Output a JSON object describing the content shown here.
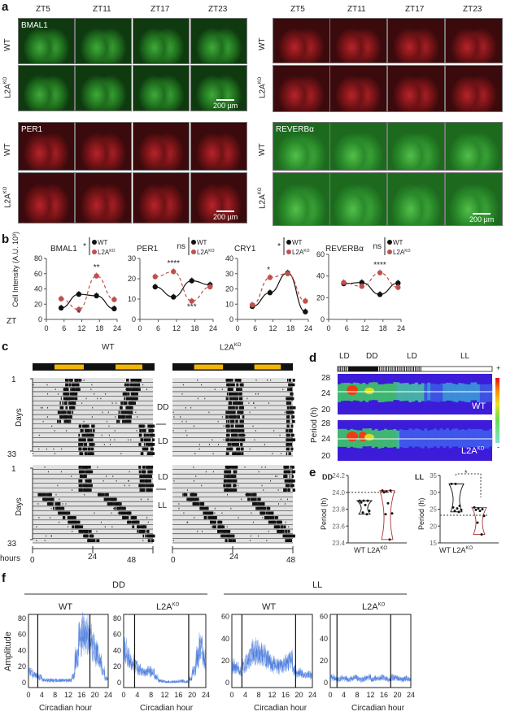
{
  "panel_labels": {
    "a": "a",
    "b": "b",
    "c": "c",
    "d": "d",
    "e": "e",
    "f": "f"
  },
  "genotypes": {
    "wt": "WT",
    "ko": "L2A",
    "ko_sup": "KO"
  },
  "panel_a": {
    "timepoints": [
      "ZT5",
      "ZT11",
      "ZT17",
      "ZT23"
    ],
    "markers": {
      "bmal1": "BMAL1",
      "per1": "PER1",
      "reverb": "REVERBα"
    },
    "scale_bar": "200 µm"
  },
  "panel_c": {
    "days_label": "Days",
    "day_start": "1",
    "day_end": "33",
    "hours_label": "hours",
    "hour_ticks": [
      "0",
      "24",
      "48"
    ],
    "conditions": {
      "dd": "DD",
      "ld": "LD",
      "ll": "LL"
    }
  },
  "panel_d": {
    "segments": [
      "LD",
      "DD",
      "LD",
      "LL"
    ],
    "y_label": "Period (h)",
    "y_ticks": [
      "28",
      "24",
      "20"
    ],
    "scale_plus": "+",
    "scale_minus": "-"
  },
  "panel_e": {
    "dd": {
      "title": "DD",
      "y_label": "Period (h)",
      "y_ticks": [
        "24.2",
        "24.0",
        "23.8",
        "23.6",
        "23.4"
      ],
      "ylim": [
        23.4,
        24.2
      ],
      "ref": 24.0,
      "wt": [
        23.9,
        23.9,
        23.9,
        23.88,
        23.85,
        23.78,
        23.76,
        23.74
      ],
      "ko": [
        24.02,
        24.01,
        24.02,
        24.0,
        23.87,
        23.75,
        23.74,
        23.44
      ]
    },
    "ll": {
      "title": "LL",
      "y_label": "Period (h)",
      "y_ticks": [
        "35",
        "30",
        "25",
        "20",
        "15"
      ],
      "ylim": [
        15,
        35
      ],
      "ref": 23.2,
      "sig": "*",
      "wt": [
        32.5,
        32.5,
        26,
        25.5,
        25.2,
        24.8,
        24.5,
        24.2
      ],
      "ko": [
        25.5,
        25.2,
        25,
        24.8,
        24.5,
        23,
        21,
        17.5
      ]
    }
  },
  "panel_f": {
    "dd_label": "DD",
    "ll_label": "LL",
    "x_label": "Circadian hour",
    "y_label": "Amplitude"
  },
  "chart_data": [
    {
      "type": "line",
      "title": "BMAL1",
      "sig": "*",
      "x": [
        5,
        11,
        17,
        23
      ],
      "xlim": [
        0,
        24
      ],
      "xticks": [
        0,
        6,
        12,
        18,
        24
      ],
      "ylim": [
        0,
        80
      ],
      "yticks": [
        0,
        20,
        40,
        60,
        80
      ],
      "ylabel": "Cell Intensity (A.U. 10³)",
      "xlabel": "ZT",
      "series": [
        {
          "name": "WT",
          "values": [
            15,
            33,
            31,
            14
          ],
          "color": "#111111"
        },
        {
          "name": "L2AKO",
          "values": [
            27,
            13,
            57,
            26
          ],
          "color": "#c0504d"
        }
      ],
      "annotations": [
        {
          "x": 11,
          "y": 5,
          "text": "*"
        },
        {
          "x": 17,
          "y": 65,
          "text": "**"
        }
      ]
    },
    {
      "type": "line",
      "title": "PER1",
      "sig": "ns",
      "x": [
        5,
        11,
        17,
        23
      ],
      "xlim": [
        0,
        24
      ],
      "xticks": [
        0,
        6,
        12,
        18,
        24
      ],
      "ylim": [
        0,
        30
      ],
      "yticks": [
        0,
        10,
        20,
        30
      ],
      "series": [
        {
          "name": "WT",
          "values": [
            16,
            11,
            19,
            17
          ],
          "color": "#111111"
        },
        {
          "name": "L2AKO",
          "values": [
            21,
            23.5,
            9,
            16
          ],
          "color": "#c0504d"
        }
      ],
      "annotations": [
        {
          "x": 11,
          "y": 26.5,
          "text": "****"
        },
        {
          "x": 17,
          "y": 5,
          "text": "***"
        }
      ]
    },
    {
      "type": "line",
      "title": "CRY1",
      "sig": "*",
      "x": [
        5,
        11,
        17,
        23
      ],
      "xlim": [
        0,
        24
      ],
      "xticks": [
        0,
        6,
        12,
        18,
        24
      ],
      "ylim": [
        0,
        40
      ],
      "yticks": [
        0,
        10,
        20,
        30,
        40
      ],
      "series": [
        {
          "name": "WT",
          "values": [
            8.5,
            17.5,
            30.5,
            5
          ],
          "color": "#111111"
        },
        {
          "name": "L2AKO",
          "values": [
            9.5,
            27.5,
            30,
            12
          ],
          "color": "#c0504d"
        }
      ],
      "annotations": [
        {
          "x": 10.5,
          "y": 31,
          "text": "*"
        }
      ]
    },
    {
      "type": "line",
      "title": "REVERBα",
      "sig": "ns",
      "x": [
        5,
        11,
        17,
        23
      ],
      "xlim": [
        0,
        24
      ],
      "xticks": [
        0,
        6,
        12,
        18,
        24
      ],
      "ylim": [
        0,
        60
      ],
      "yticks": [
        0,
        20,
        40,
        60
      ],
      "series": [
        {
          "name": "WT",
          "values": [
            33,
            34,
            23,
            33.5
          ],
          "color": "#111111"
        },
        {
          "name": "L2AKO",
          "values": [
            34,
            30.5,
            43,
            29.5
          ],
          "color": "#c0504d"
        }
      ],
      "annotations": [
        {
          "x": 17,
          "y": 48,
          "text": "****"
        }
      ]
    },
    {
      "type": "area",
      "title": "WT",
      "group": "DD",
      "xlim": [
        0,
        24
      ],
      "xticks": [
        0,
        4,
        8,
        12,
        16,
        20,
        24
      ],
      "ylim": [
        0,
        85
      ],
      "yticks": [
        0,
        20,
        40,
        60,
        80
      ],
      "vlines": [
        2.8,
        18.5
      ],
      "values": [
        12,
        10,
        8,
        6,
        3,
        2,
        2,
        2,
        2,
        2,
        2,
        2,
        2,
        8,
        30,
        52,
        62,
        58,
        52,
        44,
        36,
        26,
        14,
        4
      ]
    },
    {
      "type": "area",
      "title": "L2AKO",
      "group": "DD",
      "xlim": [
        0,
        24
      ],
      "xticks": [
        0,
        4,
        8,
        12,
        16,
        20,
        24
      ],
      "ylim": [
        0,
        85
      ],
      "yticks": [
        0,
        20,
        40,
        60,
        80
      ],
      "vlines": [
        3.2,
        19
      ],
      "values": [
        40,
        30,
        24,
        20,
        16,
        12,
        12,
        14,
        12,
        6,
        2,
        1,
        0,
        0,
        0,
        0,
        1,
        1,
        0,
        4,
        14,
        30,
        42,
        30
      ]
    },
    {
      "type": "area",
      "title": "WT",
      "group": "LL",
      "xlim": [
        0,
        24
      ],
      "xticks": [
        0,
        4,
        8,
        12,
        16,
        20,
        24
      ],
      "ylim": [
        0,
        62
      ],
      "yticks": [
        0,
        20,
        40,
        60
      ],
      "vlines": [
        3,
        19
      ],
      "values": [
        14,
        12,
        10,
        14,
        18,
        22,
        26,
        28,
        26,
        24,
        20,
        18,
        16,
        14,
        14,
        16,
        18,
        20,
        10,
        8,
        8,
        6,
        6,
        6
      ]
    },
    {
      "type": "area",
      "title": "L2AKO",
      "group": "LL",
      "xlim": [
        0,
        24
      ],
      "xticks": [
        0,
        4,
        8,
        12,
        16,
        20,
        24
      ],
      "ylim": [
        0,
        62
      ],
      "yticks": [
        0,
        20,
        40,
        60
      ],
      "vlines": [
        2,
        18
      ],
      "values": [
        4,
        3,
        2,
        3,
        3,
        2,
        3,
        4,
        3,
        2,
        3,
        4,
        2,
        3,
        3,
        4,
        3,
        2,
        4,
        4,
        3,
        2,
        3,
        2
      ]
    }
  ]
}
